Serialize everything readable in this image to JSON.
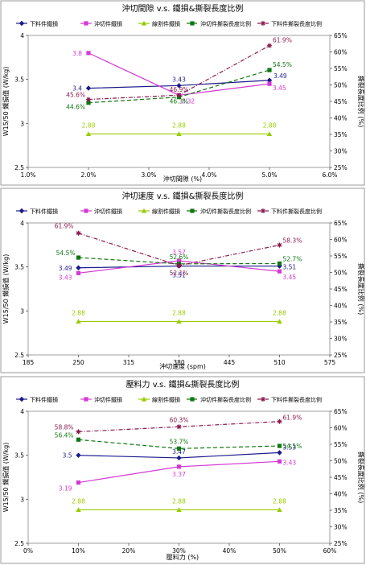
{
  "chart_data": [
    {
      "type": "line",
      "title": "沖切間隙 v.s. 鐵損&撕裂長度比例",
      "xlabel": "沖切間隙 (%)",
      "ylabel": "W15/50 鐵損值 (W/kg)",
      "y2label": "撕裂長度比例 (%)",
      "x_ticks": [
        "1.0%",
        "2.0%",
        "3.0%",
        "4.0%",
        "5.0%",
        "6.0%"
      ],
      "y_ticks": [
        "2.5",
        "3",
        "3.5",
        "4"
      ],
      "y2_ticks": [
        "25%",
        "30%",
        "35%",
        "40%",
        "45%",
        "50%",
        "55%",
        "60%",
        "65%"
      ],
      "xlim": [
        1,
        6
      ],
      "ylim": [
        2.5,
        4
      ],
      "y2lim": [
        25,
        65
      ],
      "x": [
        2,
        3.5,
        5
      ],
      "legend": [
        {
          "name": "下料件鐵損",
          "key": "down"
        },
        {
          "name": "沖切件鐵損",
          "key": "punch"
        },
        {
          "name": "線割件鐵損",
          "key": "wire"
        },
        {
          "name": "沖切件撕裂長度比例",
          "key": "punch_ratio"
        },
        {
          "name": "下料件撕裂長度比例",
          "key": "down_ratio"
        }
      ],
      "series": [
        {
          "key": "down",
          "axis": "y",
          "values": [
            3.4,
            3.43,
            3.49
          ],
          "labels": [
            "3.4",
            "3.43",
            "3.49"
          ]
        },
        {
          "key": "punch",
          "axis": "y",
          "values": [
            3.8,
            3.32,
            3.45
          ],
          "labels": [
            "3.8",
            "3.32",
            "3.45"
          ]
        },
        {
          "key": "wire",
          "axis": "y",
          "values": [
            2.88,
            2.88,
            2.88
          ],
          "labels": [
            "2.88",
            "2.88",
            "2.88"
          ]
        },
        {
          "key": "punch_ratio",
          "axis": "y2",
          "values": [
            44.6,
            46.3,
            54.5
          ],
          "labels": [
            "44.6%",
            "46.3%",
            "54.5%"
          ]
        },
        {
          "key": "down_ratio",
          "axis": "y2",
          "values": [
            45.6,
            46.9,
            61.9
          ],
          "labels": [
            "45.6%",
            "46.9%",
            "61.9%"
          ]
        }
      ]
    },
    {
      "type": "line",
      "title": "沖切速度 v.s. 鐵損&撕裂長度比例",
      "xlabel": "沖切速度 (spm)",
      "ylabel": "W15/50 鐵損值 (W/kg)",
      "y2label": "撕裂長度比例 (%)",
      "x_ticks": [
        "185",
        "250",
        "315",
        "380",
        "445",
        "510",
        "575"
      ],
      "y_ticks": [
        "2.5",
        "3",
        "3.5",
        "4"
      ],
      "y2_ticks": [
        "25%",
        "30%",
        "35%",
        "40%",
        "45%",
        "50%",
        "55%",
        "60%",
        "65%"
      ],
      "xlim": [
        185,
        575
      ],
      "ylim": [
        2.5,
        4
      ],
      "y2lim": [
        25,
        65
      ],
      "x": [
        250,
        380,
        510
      ],
      "legend": [
        {
          "name": "下料件鐵損",
          "key": "down"
        },
        {
          "name": "沖切件鐵損",
          "key": "punch"
        },
        {
          "name": "線割件鐵損",
          "key": "wire"
        },
        {
          "name": "沖切件撕裂長度比例",
          "key": "punch_ratio"
        },
        {
          "name": "下料件撕裂長度比例",
          "key": "down_ratio"
        }
      ],
      "series": [
        {
          "key": "down",
          "axis": "y",
          "values": [
            3.49,
            3.51,
            3.51
          ],
          "labels": [
            "3.49",
            "3.51",
            "3.51"
          ]
        },
        {
          "key": "punch",
          "axis": "y",
          "values": [
            3.43,
            3.57,
            3.45
          ],
          "labels": [
            "3.43",
            "3.57",
            "3.45"
          ]
        },
        {
          "key": "wire",
          "axis": "y",
          "values": [
            2.88,
            2.88,
            2.88
          ],
          "labels": [
            "2.88",
            "2.88",
            "2.88"
          ]
        },
        {
          "key": "punch_ratio",
          "axis": "y2",
          "values": [
            54.5,
            52.6,
            52.7
          ],
          "labels": [
            "54.5%",
            "52.6%",
            "52.7%"
          ]
        },
        {
          "key": "down_ratio",
          "axis": "y2",
          "values": [
            61.9,
            52.1,
            58.3
          ],
          "labels": [
            "61.9%",
            "52.1%",
            "58.3%"
          ]
        }
      ]
    },
    {
      "type": "line",
      "title": "壓料力 v.s. 鐵損&撕裂長度比例",
      "xlabel": "壓料力 (%)",
      "ylabel": "W15/50 鐵損值 (W/kg)",
      "y2label": "撕裂長度比例 (%)",
      "x_ticks": [
        "0%",
        "10%",
        "20%",
        "30%",
        "40%",
        "50%",
        "60%"
      ],
      "y_ticks": [
        "2.5",
        "3",
        "3.5",
        "4"
      ],
      "y2_ticks": [
        "25%",
        "30%",
        "35%",
        "40%",
        "45%",
        "50%",
        "55%",
        "60%",
        "65%"
      ],
      "xlim": [
        0,
        60
      ],
      "ylim": [
        2.5,
        4
      ],
      "y2lim": [
        25,
        65
      ],
      "x": [
        10,
        30,
        50
      ],
      "legend": [
        {
          "name": "下料件鐵損",
          "key": "down"
        },
        {
          "name": "沖切件鐵損",
          "key": "punch"
        },
        {
          "name": "線割件鐵損",
          "key": "wire"
        },
        {
          "name": "沖切件撕裂長度比例",
          "key": "punch_ratio"
        },
        {
          "name": "下料件撕裂長度比例",
          "key": "down_ratio"
        }
      ],
      "series": [
        {
          "key": "down",
          "axis": "y",
          "values": [
            3.5,
            3.47,
            3.53
          ],
          "labels": [
            "3.5",
            "3.47",
            "3.53"
          ]
        },
        {
          "key": "punch",
          "axis": "y",
          "values": [
            3.19,
            3.37,
            3.43
          ],
          "labels": [
            "3.19",
            "3.37",
            "3.43"
          ]
        },
        {
          "key": "wire",
          "axis": "y",
          "values": [
            2.88,
            2.88,
            2.88
          ],
          "labels": [
            "2.88",
            "2.88",
            "2.88"
          ]
        },
        {
          "key": "punch_ratio",
          "axis": "y2",
          "values": [
            56.4,
            53.7,
            54.5
          ],
          "labels": [
            "56.4%",
            "53.7%",
            "54.5%"
          ]
        },
        {
          "key": "down_ratio",
          "axis": "y2",
          "values": [
            58.8,
            60.3,
            61.9
          ],
          "labels": [
            "58.8%",
            "60.3%",
            "61.9%"
          ]
        }
      ]
    }
  ],
  "series_styles": {
    "down": {
      "color": "#1a1a8c",
      "dash": "",
      "marker": "diamond"
    },
    "punch": {
      "color": "#d43ad4",
      "dash": "",
      "marker": "square"
    },
    "wire": {
      "color": "#99cc00",
      "dash": "",
      "marker": "triangle"
    },
    "punch_ratio": {
      "color": "#117711",
      "dash": "5,3",
      "marker": "square"
    },
    "down_ratio": {
      "color": "#8b1a4d",
      "dash": "5,2,1,2",
      "marker": "star"
    }
  }
}
